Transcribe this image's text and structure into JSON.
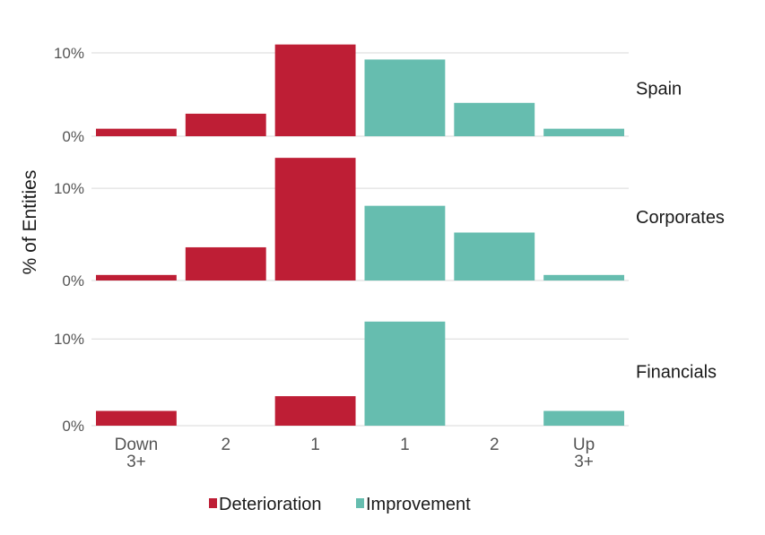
{
  "chart_data": {
    "type": "bar",
    "ylabel": "% of Entities",
    "categories": [
      [
        "Down",
        "3+"
      ],
      [
        "2"
      ],
      [
        "1"
      ],
      [
        "1"
      ],
      [
        "2"
      ],
      [
        "Up",
        "3+"
      ]
    ],
    "groups": [
      "Deterioration",
      "Deterioration",
      "Deterioration",
      "Improvement",
      "Improvement",
      "Improvement"
    ],
    "yticks": [
      {
        "value": 0,
        "label": "0%"
      },
      {
        "value": 10,
        "label": "10%"
      }
    ],
    "colors": {
      "Deterioration": "#be1e35",
      "Improvement": "#66bdaf"
    },
    "legend": {
      "position": "bottom",
      "items": [
        "Deterioration",
        "Improvement"
      ]
    },
    "grid": true,
    "panels": [
      {
        "name": "Spain",
        "values": [
          0.9,
          2.7,
          11.0,
          9.2,
          4.0,
          0.9
        ],
        "ylim": [
          0,
          11.5
        ]
      },
      {
        "name": "Corporates",
        "values": [
          0.6,
          3.6,
          13.3,
          8.1,
          5.2,
          0.6
        ],
        "ylim": [
          0,
          13.8
        ]
      },
      {
        "name": "Financials",
        "values": [
          1.7,
          0,
          3.4,
          12.0,
          0,
          1.7
        ],
        "ylim": [
          0,
          12.5
        ]
      }
    ]
  }
}
